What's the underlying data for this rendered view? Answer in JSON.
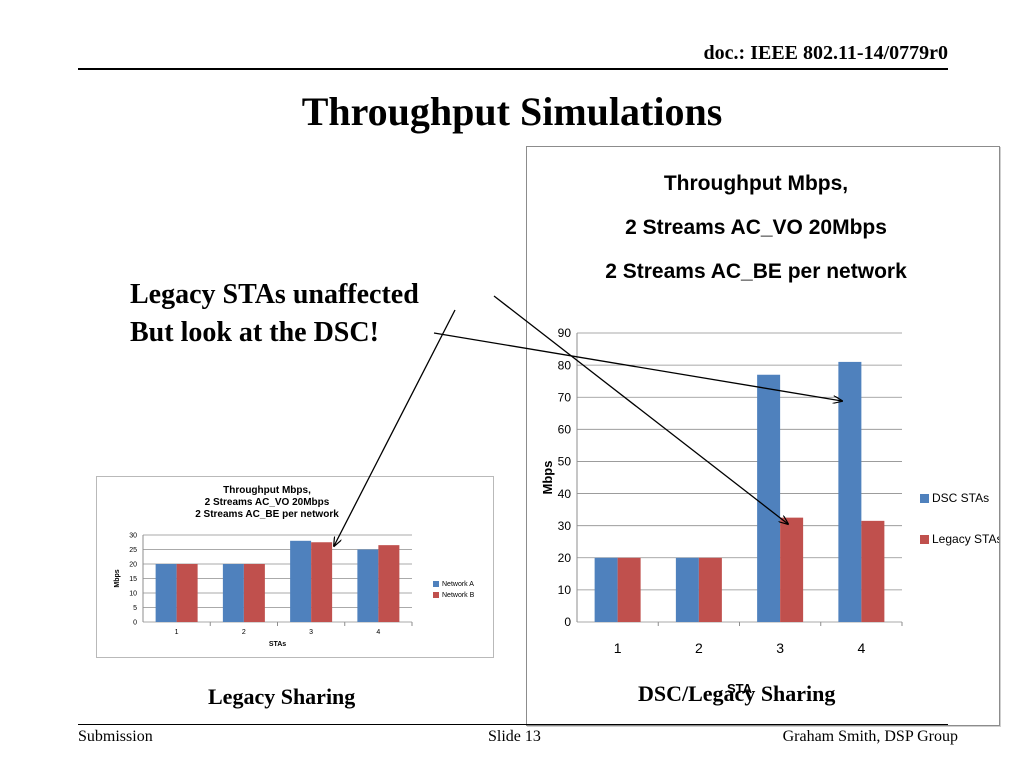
{
  "header": {
    "doc_id": "doc.: IEEE 802.11-14/0779r0",
    "title": "Throughput Simulations"
  },
  "annotation": {
    "line1": "Legacy STAs unaffected",
    "line2": "But look at the DSC!"
  },
  "captions": {
    "left": "Legacy Sharing",
    "right": "DSC/Legacy Sharing"
  },
  "footer": {
    "left": "Submission",
    "center": "Slide 13",
    "right": "Graham Smith, DSP Group"
  },
  "colors": {
    "blue": "#4f81bd",
    "red": "#c0504d",
    "grid": "#8e8e8e"
  },
  "chart_data": [
    {
      "type": "bar",
      "title_lines": [
        "Throughput Mbps,",
        "2 Streams AC_VO 20Mbps",
        "2 Streams AC_BE  per network"
      ],
      "categories": [
        "1",
        "2",
        "3",
        "4"
      ],
      "series": [
        {
          "name": "Network A",
          "values": [
            20,
            20,
            28,
            25
          ]
        },
        {
          "name": "Network B",
          "values": [
            20,
            20,
            27.5,
            26.5
          ]
        }
      ],
      "xlabel": "STAs",
      "ylabel": "Mbps",
      "ylim": [
        0,
        30
      ],
      "yticks": [
        0,
        5,
        10,
        15,
        20,
        25,
        30
      ],
      "grid": true,
      "legend": "right"
    },
    {
      "type": "bar",
      "title_lines": [
        "Throughput Mbps,",
        "2 Streams AC_VO 20Mbps",
        "2 Streams AC_BE  per network"
      ],
      "categories": [
        "1",
        "2",
        "3",
        "4"
      ],
      "series": [
        {
          "name": "DSC STAs",
          "values": [
            20,
            20,
            77,
            81
          ]
        },
        {
          "name": "Legacy STAs",
          "values": [
            20,
            20,
            32.5,
            31.5
          ]
        }
      ],
      "xlabel": "STA",
      "ylabel": "Mbps",
      "ylim": [
        0,
        90
      ],
      "yticks": [
        0,
        10,
        20,
        30,
        40,
        50,
        60,
        70,
        80,
        90
      ],
      "grid": true,
      "legend": "right"
    }
  ]
}
